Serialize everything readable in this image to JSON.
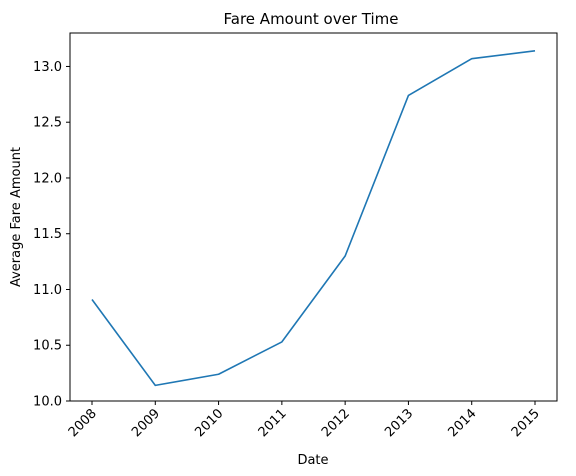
{
  "chart_data": {
    "type": "line",
    "title": "Fare Amount over Time",
    "xlabel": "Date",
    "ylabel": "Average Fare Amount",
    "x": [
      "2008",
      "2009",
      "2010",
      "2011",
      "2012",
      "2013",
      "2014",
      "2015"
    ],
    "series": [
      {
        "values": [
          10.91,
          10.14,
          10.24,
          10.53,
          11.3,
          12.74,
          13.07,
          13.14
        ],
        "color": "#1f77b4"
      }
    ],
    "yticks": [
      "10.0",
      "10.5",
      "11.0",
      "11.5",
      "12.0",
      "12.5",
      "13.0"
    ],
    "ylim": [
      10.0,
      13.3
    ],
    "grid": false,
    "legend": "none",
    "xtick_rotation": -45
  }
}
